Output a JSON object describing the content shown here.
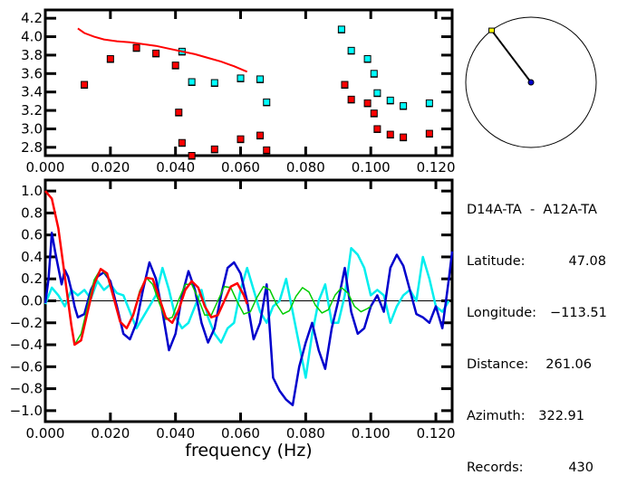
{
  "chart_data": [
    {
      "type": "scatter",
      "title": "",
      "xlabel": "",
      "ylabel": "",
      "xlim": [
        0.0,
        0.125
      ],
      "ylim": [
        2.71,
        4.29
      ],
      "x_ticks": [
        0.0,
        0.02,
        0.04,
        0.06,
        0.08,
        0.1,
        0.12
      ],
      "x_tick_labels": [
        "0.000",
        "0.020",
        "0.040",
        "0.060",
        "0.080",
        "0.100",
        "0.120"
      ],
      "y_ticks": [
        2.8,
        3.0,
        3.2,
        3.4,
        3.6,
        3.8,
        4.0,
        4.2
      ],
      "y_tick_labels": [
        "2.8",
        "3.0",
        "3.2",
        "3.4",
        "3.6",
        "3.8",
        "4.0",
        "4.2"
      ],
      "grid": false,
      "series": [
        {
          "name": "red-points",
          "color": "#ff0000",
          "marker": "square",
          "points": [
            [
              0.012,
              3.48
            ],
            [
              0.02,
              3.76
            ],
            [
              0.028,
              3.88
            ],
            [
              0.034,
              3.82
            ],
            [
              0.04,
              3.69
            ],
            [
              0.041,
              3.18
            ],
            [
              0.042,
              2.85
            ],
            [
              0.045,
              2.71
            ],
            [
              0.052,
              2.78
            ],
            [
              0.06,
              2.89
            ],
            [
              0.066,
              2.93
            ],
            [
              0.068,
              2.77
            ],
            [
              0.092,
              3.48
            ],
            [
              0.094,
              3.32
            ],
            [
              0.099,
              3.28
            ],
            [
              0.101,
              3.17
            ],
            [
              0.102,
              3.0
            ],
            [
              0.106,
              2.94
            ],
            [
              0.11,
              2.91
            ],
            [
              0.118,
              2.95
            ]
          ]
        },
        {
          "name": "cyan-points",
          "color": "#00ffff",
          "marker": "square",
          "points": [
            [
              0.042,
              3.84
            ],
            [
              0.045,
              3.51
            ],
            [
              0.052,
              3.5
            ],
            [
              0.06,
              3.55
            ],
            [
              0.066,
              3.54
            ],
            [
              0.068,
              3.29
            ],
            [
              0.091,
              4.08
            ],
            [
              0.094,
              3.85
            ],
            [
              0.099,
              3.76
            ],
            [
              0.101,
              3.6
            ],
            [
              0.102,
              3.39
            ],
            [
              0.106,
              3.31
            ],
            [
              0.11,
              3.25
            ],
            [
              0.118,
              3.28
            ]
          ]
        },
        {
          "name": "red-dispersion-curve",
          "color": "#ff0000",
          "type": "line",
          "x": [
            0.01,
            0.012,
            0.015,
            0.018,
            0.022,
            0.026,
            0.03,
            0.034,
            0.038,
            0.042,
            0.046,
            0.05,
            0.054,
            0.058,
            0.062
          ],
          "y": [
            4.09,
            4.04,
            4.0,
            3.97,
            3.95,
            3.94,
            3.92,
            3.9,
            3.87,
            3.84,
            3.81,
            3.77,
            3.73,
            3.68,
            3.62
          ]
        }
      ]
    },
    {
      "type": "line",
      "title": "",
      "xlabel": "frequency (Hz)",
      "ylabel": "",
      "xlim": [
        0.0,
        0.125
      ],
      "ylim": [
        -1.1,
        1.1
      ],
      "x_ticks": [
        0.0,
        0.02,
        0.04,
        0.06,
        0.08,
        0.1,
        0.12
      ],
      "x_tick_labels": [
        "0.000",
        "0.020",
        "0.040",
        "0.060",
        "0.080",
        "0.100",
        "0.120"
      ],
      "y_ticks": [
        1.0,
        0.8,
        0.6,
        0.4,
        0.2,
        0.0,
        -0.2,
        -0.4,
        -0.6,
        -0.8,
        -1.0
      ],
      "y_tick_labels": [
        "1.0",
        "0.8",
        "0.6",
        "0.4",
        "0.2",
        "0.0",
        "−0.2",
        "−0.4",
        "−0.6",
        "−0.8",
        "−1.0"
      ],
      "zero_line": true,
      "grid": false,
      "series": [
        {
          "name": "red-model",
          "color": "#ff0000",
          "x": [
            0.0,
            0.002,
            0.004,
            0.006,
            0.008,
            0.009,
            0.011,
            0.013,
            0.015,
            0.017,
            0.019,
            0.021,
            0.023,
            0.025,
            0.027,
            0.029,
            0.031,
            0.033,
            0.035,
            0.037,
            0.039,
            0.041,
            0.043,
            0.045,
            0.047,
            0.049,
            0.051,
            0.053,
            0.055,
            0.057,
            0.059,
            0.061,
            0.062
          ],
          "y": [
            1.0,
            0.93,
            0.66,
            0.22,
            -0.22,
            -0.4,
            -0.36,
            -0.1,
            0.15,
            0.29,
            0.25,
            0.03,
            -0.19,
            -0.25,
            -0.13,
            0.07,
            0.21,
            0.2,
            0.03,
            -0.15,
            -0.2,
            -0.08,
            0.1,
            0.18,
            0.12,
            -0.05,
            -0.15,
            -0.13,
            0.0,
            0.13,
            0.16,
            0.05,
            -0.03
          ]
        },
        {
          "name": "green-model",
          "color": "#00cc00",
          "x": [
            0.009,
            0.011,
            0.013,
            0.015,
            0.017,
            0.019,
            0.021,
            0.023,
            0.025,
            0.027,
            0.029,
            0.031,
            0.033,
            0.035,
            0.037,
            0.039,
            0.041,
            0.043,
            0.045,
            0.047,
            0.049,
            0.051,
            0.053,
            0.055,
            0.057,
            0.059,
            0.061,
            0.063,
            0.065,
            0.067,
            0.069,
            0.071,
            0.073,
            0.075,
            0.077,
            0.079,
            0.081,
            0.083,
            0.085,
            0.087,
            0.089,
            0.091,
            0.093,
            0.095,
            0.097,
            0.099,
            0.1
          ],
          "y": [
            -0.4,
            -0.3,
            -0.05,
            0.19,
            0.29,
            0.23,
            0.02,
            -0.19,
            -0.25,
            -0.12,
            0.09,
            0.21,
            0.15,
            -0.02,
            -0.17,
            -0.15,
            0.01,
            0.15,
            0.15,
            0.02,
            -0.13,
            -0.13,
            0.0,
            0.13,
            0.12,
            -0.01,
            -0.12,
            -0.1,
            0.03,
            0.13,
            0.1,
            -0.03,
            -0.12,
            -0.09,
            0.04,
            0.12,
            0.08,
            -0.04,
            -0.11,
            -0.08,
            0.05,
            0.12,
            0.07,
            -0.05,
            -0.1,
            -0.07,
            -0.05
          ]
        },
        {
          "name": "blue-observed",
          "color": "#0000cc",
          "x": [
            0.0,
            0.001,
            0.002,
            0.003,
            0.004,
            0.005,
            0.006,
            0.007,
            0.008,
            0.009,
            0.01,
            0.012,
            0.014,
            0.016,
            0.018,
            0.02,
            0.022,
            0.024,
            0.026,
            0.028,
            0.03,
            0.032,
            0.034,
            0.036,
            0.038,
            0.04,
            0.042,
            0.044,
            0.046,
            0.048,
            0.05,
            0.052,
            0.054,
            0.056,
            0.058,
            0.06,
            0.062,
            0.064,
            0.066,
            0.068,
            0.07,
            0.072,
            0.074,
            0.076,
            0.078,
            0.08,
            0.082,
            0.084,
            0.086,
            0.088,
            0.09,
            0.092,
            0.094,
            0.096,
            0.098,
            0.1,
            0.102,
            0.104,
            0.106,
            0.108,
            0.11,
            0.112,
            0.114,
            0.116,
            0.118,
            0.12,
            0.122,
            0.124,
            0.125
          ],
          "y": [
            -0.02,
            0.2,
            0.62,
            0.45,
            0.3,
            0.15,
            0.28,
            0.22,
            0.1,
            -0.05,
            -0.15,
            -0.12,
            0.1,
            0.22,
            0.26,
            0.18,
            -0.05,
            -0.3,
            -0.35,
            -0.2,
            0.1,
            0.35,
            0.2,
            -0.1,
            -0.45,
            -0.3,
            0.05,
            0.27,
            0.1,
            -0.2,
            -0.38,
            -0.25,
            0.05,
            0.3,
            0.35,
            0.25,
            0.0,
            -0.35,
            -0.2,
            0.15,
            -0.7,
            -0.82,
            -0.9,
            -0.95,
            -0.6,
            -0.38,
            -0.2,
            -0.45,
            -0.62,
            -0.25,
            0.0,
            0.3,
            -0.1,
            -0.3,
            -0.25,
            -0.05,
            0.05,
            -0.1,
            0.3,
            0.42,
            0.32,
            0.1,
            -0.12,
            -0.15,
            -0.2,
            -0.05,
            -0.25,
            0.2,
            0.45
          ]
        },
        {
          "name": "cyan-observed",
          "color": "#00eeee",
          "x": [
            0.0,
            0.002,
            0.004,
            0.006,
            0.008,
            0.01,
            0.012,
            0.014,
            0.016,
            0.018,
            0.02,
            0.022,
            0.024,
            0.026,
            0.028,
            0.03,
            0.032,
            0.034,
            0.036,
            0.038,
            0.04,
            0.042,
            0.044,
            0.046,
            0.048,
            0.05,
            0.052,
            0.054,
            0.056,
            0.058,
            0.06,
            0.062,
            0.064,
            0.066,
            0.068,
            0.07,
            0.072,
            0.074,
            0.076,
            0.078,
            0.08,
            0.082,
            0.084,
            0.086,
            0.088,
            0.09,
            0.092,
            0.094,
            0.096,
            0.098,
            0.1,
            0.102,
            0.104,
            0.106,
            0.108,
            0.11,
            0.112,
            0.114,
            0.116,
            0.118,
            0.12,
            0.122,
            0.124
          ],
          "y": [
            -0.03,
            0.12,
            0.05,
            -0.05,
            0.1,
            0.05,
            0.1,
            0.02,
            0.18,
            0.1,
            0.15,
            0.07,
            0.05,
            -0.1,
            -0.25,
            -0.15,
            -0.05,
            0.05,
            0.3,
            0.1,
            -0.15,
            -0.25,
            -0.2,
            -0.05,
            0.1,
            -0.15,
            -0.3,
            -0.38,
            -0.25,
            -0.2,
            0.1,
            0.3,
            0.1,
            -0.1,
            -0.2,
            -0.05,
            0.0,
            0.2,
            -0.1,
            -0.4,
            -0.7,
            -0.3,
            0.0,
            0.15,
            -0.2,
            -0.2,
            0.05,
            0.48,
            0.42,
            0.3,
            0.05,
            0.1,
            0.05,
            -0.2,
            -0.05,
            0.05,
            0.1,
            0.0,
            0.4,
            0.2,
            -0.05,
            -0.1,
            0.0
          ]
        }
      ]
    }
  ],
  "azimuth_dial": {
    "azimuth_deg": 322.91,
    "center_marker_color": "#0000cc",
    "end_marker_color": "#ffff00"
  },
  "info": {
    "pair": "D14A-TA  -  A12A-TA",
    "rows": [
      {
        "label": "Latitude:",
        "value": "47.08"
      },
      {
        "label": "Longitude:",
        "value": "−113.51"
      },
      {
        "label": "Distance:",
        "value": "261.06"
      },
      {
        "label": "Azimuth:",
        "value": "322.91"
      },
      {
        "label": "Records:",
        "value": "430"
      }
    ]
  }
}
